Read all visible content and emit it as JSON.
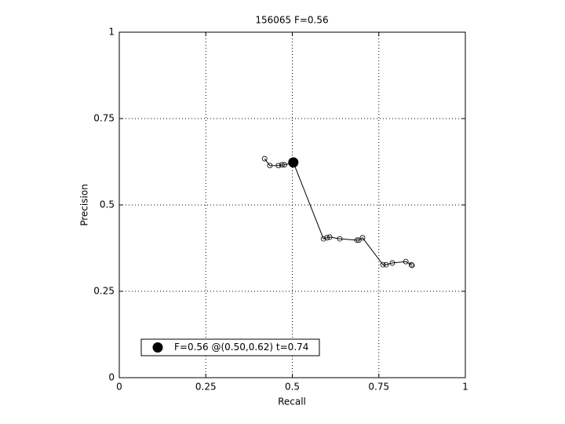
{
  "chart_data": {
    "type": "line",
    "title": "156065 F=0.56",
    "xlabel": "Recall",
    "ylabel": "Precision",
    "xlim": [
      0,
      1
    ],
    "ylim": [
      0,
      1
    ],
    "xticks": [
      0,
      0.25,
      0.5,
      0.75,
      1
    ],
    "yticks": [
      0,
      0.25,
      0.5,
      0.75,
      1
    ],
    "grid": true,
    "legend_position": "lower left",
    "series": [
      {
        "color": "#000000",
        "marker": "open-circle",
        "x": [
          0.42,
          0.435,
          0.46,
          0.47,
          0.477,
          0.503,
          0.59,
          0.6,
          0.608,
          0.637,
          0.687,
          0.692,
          0.703,
          0.762,
          0.771,
          0.789,
          0.828,
          0.844,
          0.846
        ],
        "values": [
          0.634,
          0.614,
          0.614,
          0.616,
          0.616,
          0.623,
          0.402,
          0.405,
          0.407,
          0.402,
          0.398,
          0.398,
          0.405,
          0.327,
          0.327,
          0.332,
          0.336,
          0.327,
          0.325
        ]
      },
      {
        "name": "F=0.56 @(0.50,0.62) t=0.74",
        "color": "#000000",
        "marker": "filled-circle",
        "x": [
          0.503
        ],
        "values": [
          0.623
        ]
      }
    ]
  }
}
